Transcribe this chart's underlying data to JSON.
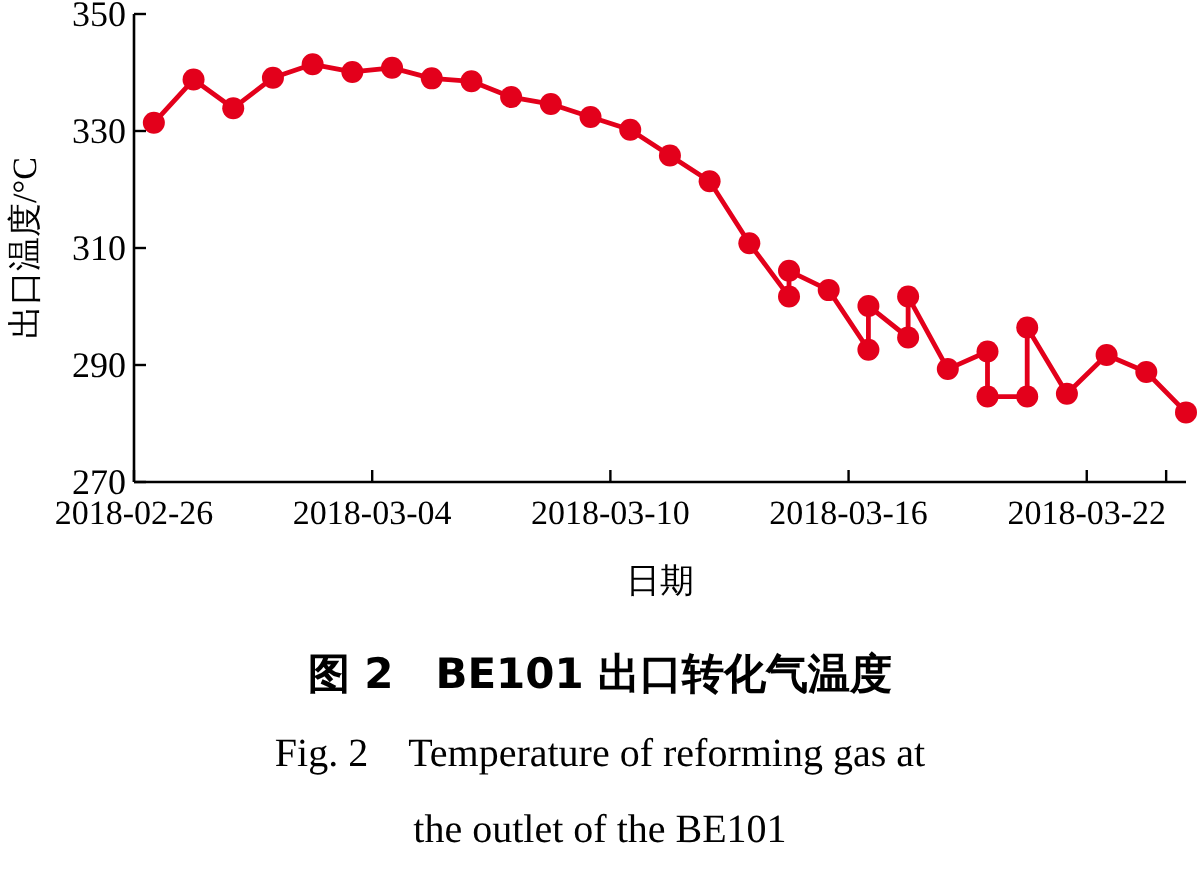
{
  "chart_data": {
    "type": "line",
    "title": "图 2　BE101 出口转化气温度",
    "subtitle": "Fig. 2　Temperature of reforming gas at the outlet of the BE101",
    "xlabel": "日期",
    "ylabel": "出口温度/°C",
    "x": [
      "2018-02-26T12:00",
      "2018-02-27T12:00",
      "2018-02-28T12:00",
      "2018-03-01T12:00",
      "2018-03-02T12:00",
      "2018-03-03T12:00",
      "2018-03-04T12:00",
      "2018-03-05T12:00",
      "2018-03-06T12:00",
      "2018-03-07T12:00",
      "2018-03-08T12:00",
      "2018-03-09T12:00",
      "2018-03-10T12:00",
      "2018-03-11T12:00",
      "2018-03-12T12:00",
      "2018-03-13T12:00",
      "2018-03-14T12:00",
      "2018-03-14T12:00",
      "2018-03-15T12:00",
      "2018-03-16T12:00",
      "2018-03-16T12:00",
      "2018-03-17T12:00",
      "2018-03-17T12:00",
      "2018-03-18T12:00",
      "2018-03-19T12:00",
      "2018-03-19T12:00",
      "2018-03-20T12:00",
      "2018-03-20T12:00",
      "2018-03-21T12:00",
      "2018-03-22T12:00",
      "2018-03-23T12:00",
      "2018-03-24T12:00"
    ],
    "values": [
      331.4,
      338.8,
      333.9,
      339.1,
      341.4,
      340.1,
      340.8,
      339.0,
      338.5,
      335.8,
      334.6,
      332.4,
      330.2,
      325.8,
      321.4,
      310.8,
      301.7,
      306.1,
      302.8,
      292.6,
      300.1,
      294.7,
      301.7,
      289.3,
      292.3,
      284.6,
      284.6,
      296.4,
      285.1,
      291.7,
      288.8,
      281.9
    ],
    "color": "#e3001b",
    "marker": "circle",
    "xlim": [
      "2018-02-26",
      "2018-03-24T12:00"
    ],
    "xticks": [
      "2018-02-26",
      "2018-03-04",
      "2018-03-10",
      "2018-03-16",
      "2018-03-22",
      {
        "value": "2018-03-24",
        "label": null
      }
    ],
    "ylim": [
      270,
      350
    ],
    "yticks": [
      270,
      290,
      310,
      330,
      350
    ]
  }
}
